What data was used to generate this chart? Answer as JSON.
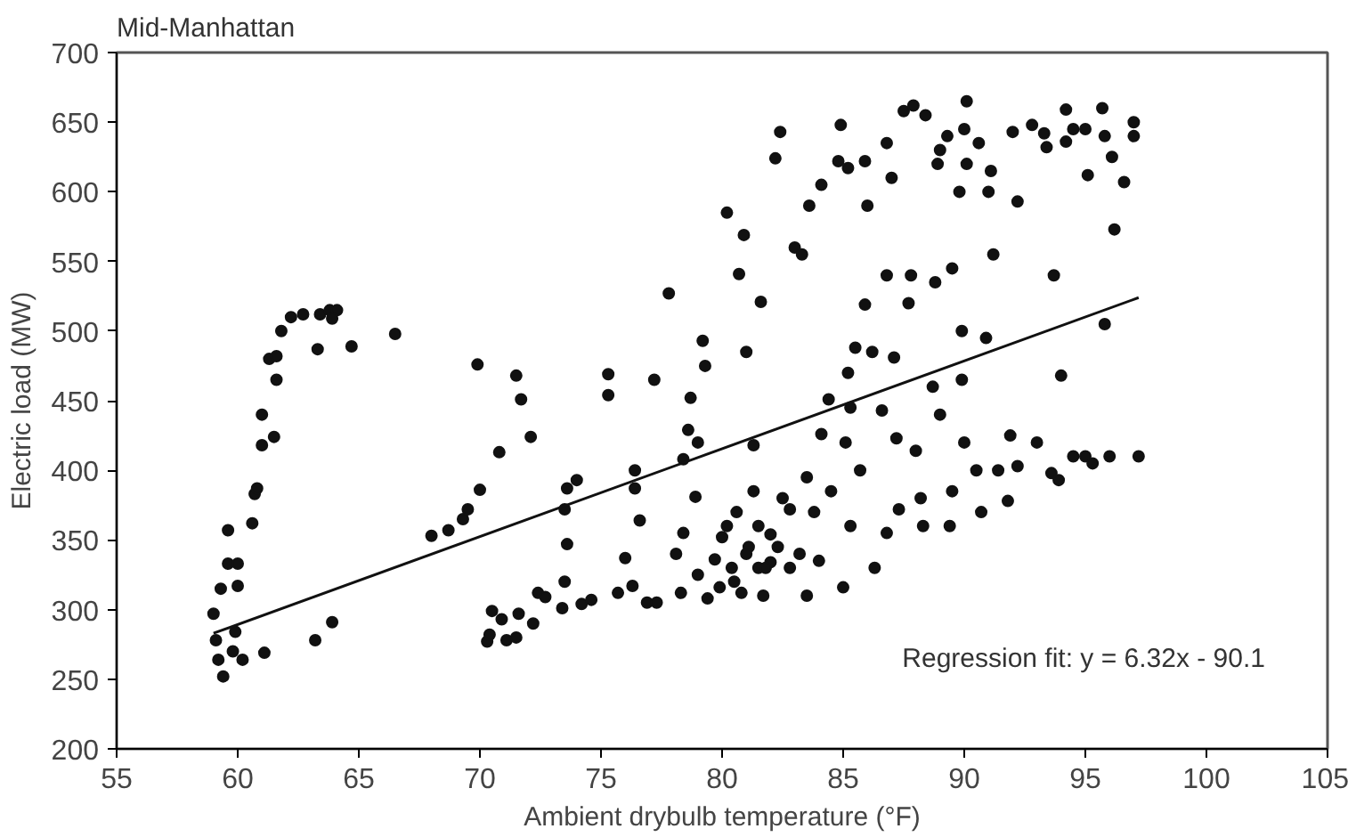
{
  "chart_data": {
    "type": "scatter",
    "title": "Mid-Manhattan",
    "xlabel": "Ambient drybulb temperature (°F)",
    "ylabel": "Electric load (MW)",
    "xlim": [
      55,
      105
    ],
    "xticks": [
      55,
      60,
      65,
      70,
      75,
      80,
      85,
      90,
      95,
      100,
      105
    ],
    "ylim": [
      200,
      700
    ],
    "yticks": [
      200,
      250,
      300,
      350,
      400,
      450,
      500,
      550,
      600,
      650,
      700
    ],
    "grid": false,
    "marker": "circle",
    "annotations": [
      "Regression fit: y = 6.32x - 90.1"
    ],
    "series": [
      {
        "color": "#111111",
        "x": [
          59.0,
          59.1,
          59.2,
          59.4,
          59.3,
          59.6,
          59.6,
          60.0,
          60.0,
          59.9,
          59.8,
          60.2,
          60.6,
          60.7,
          60.8,
          61.0,
          61.0,
          61.1,
          61.3,
          61.5,
          61.6,
          61.6,
          61.8,
          62.2,
          62.7,
          63.3,
          63.4,
          63.8,
          64.1,
          63.9,
          64.7,
          66.5,
          63.2,
          63.9,
          68.0,
          68.7,
          69.3,
          69.5,
          70.0,
          69.9,
          70.8,
          71.5,
          71.7,
          72.1,
          70.3,
          70.4,
          70.5,
          70.9,
          71.1,
          71.5,
          71.6,
          72.2,
          72.4,
          72.7,
          73.4,
          73.5,
          73.6,
          73.5,
          73.6,
          74.0,
          74.2,
          74.6,
          75.3,
          75.3,
          76.0,
          75.7,
          76.3,
          76.4,
          76.6,
          76.4,
          76.9,
          77.3,
          77.2,
          77.8,
          78.1,
          78.4,
          78.3,
          78.7,
          78.6,
          78.4,
          79.0,
          79.2,
          79.3,
          78.9,
          79.0,
          79.4,
          79.7,
          79.9,
          80.0,
          80.2,
          80.7,
          80.9,
          80.6,
          80.4,
          80.8,
          81.0,
          81.6,
          81.3,
          81.3,
          81.1,
          81.5,
          81.7,
          82.0,
          82.2,
          82.4,
          82.0,
          82.5,
          83.0,
          83.3,
          83.6,
          82.8,
          83.2,
          83.5,
          83.5,
          84.1,
          84.1,
          84.4,
          84.0,
          84.5,
          84.8,
          84.9,
          85.2,
          85.1,
          85.2,
          85.0,
          85.3,
          85.5,
          85.3,
          85.7,
          85.9,
          85.9,
          86.0,
          86.2,
          86.3,
          86.6,
          86.8,
          86.8,
          87.0,
          87.1,
          87.2,
          86.8,
          87.3,
          87.5,
          87.8,
          87.7,
          87.9,
          88.0,
          88.4,
          88.3,
          88.2,
          88.7,
          88.8,
          89.0,
          89.0,
          88.9,
          89.3,
          89.5,
          89.4,
          89.5,
          89.8,
          89.9,
          89.9,
          90.0,
          90.1,
          90.1,
          90.0,
          90.5,
          90.6,
          90.7,
          90.9,
          91.0,
          91.2,
          91.1,
          91.4,
          91.8,
          91.9,
          92.0,
          92.2,
          92.2,
          92.8,
          93.0,
          93.3,
          93.4,
          93.6,
          93.7,
          93.9,
          94.0,
          94.2,
          94.2,
          94.5,
          94.5,
          95.0,
          95.1,
          95.0,
          95.3,
          95.7,
          95.8,
          95.8,
          96.0,
          96.1,
          96.2,
          96.6,
          97.0,
          97.0,
          97.2,
          80.5,
          81.0,
          81.8,
          82.3,
          80.2,
          81.5,
          82.8,
          83.8
        ],
        "values": [
          297,
          278,
          264,
          252,
          315,
          333,
          357,
          333,
          317,
          284,
          270,
          264,
          362,
          383,
          387,
          418,
          440,
          269,
          480,
          424,
          465,
          482,
          500,
          510,
          512,
          487,
          512,
          515,
          515,
          509,
          489,
          498,
          278,
          291,
          353,
          357,
          365,
          372,
          386,
          476,
          413,
          468,
          451,
          424,
          277,
          282,
          299,
          293,
          278,
          280,
          297,
          290,
          312,
          309,
          301,
          320,
          347,
          372,
          387,
          393,
          304,
          307,
          469,
          454,
          337,
          312,
          317,
          400,
          364,
          387,
          305,
          305,
          465,
          527,
          340,
          355,
          312,
          452,
          429,
          408,
          420,
          493,
          475,
          381,
          325,
          308,
          336,
          316,
          352,
          585,
          541,
          569,
          370,
          330,
          312,
          485,
          521,
          418,
          385,
          345,
          330,
          310,
          354,
          624,
          643,
          334,
          380,
          560,
          555,
          590,
          372,
          340,
          310,
          395,
          426,
          605,
          451,
          335,
          385,
          622,
          648,
          617,
          420,
          470,
          316,
          360,
          488,
          445,
          400,
          622,
          519,
          590,
          485,
          330,
          443,
          540,
          635,
          610,
          481,
          423,
          355,
          372,
          658,
          540,
          520,
          662,
          414,
          655,
          360,
          380,
          460,
          535,
          440,
          630,
          620,
          640,
          545,
          360,
          385,
          600,
          500,
          465,
          420,
          665,
          620,
          645,
          400,
          635,
          370,
          495,
          600,
          555,
          615,
          400,
          378,
          425,
          643,
          593,
          403,
          648,
          420,
          642,
          632,
          398,
          540,
          393,
          468,
          636,
          659,
          410,
          645,
          410,
          612,
          645,
          405,
          660,
          640,
          505,
          410,
          625,
          573,
          607,
          650,
          640,
          410,
          320,
          340,
          330,
          345,
          360,
          360,
          330,
          370
        ]
      },
      {
        "type": "line",
        "color": "#111111",
        "marker": "none",
        "line_style": "solid",
        "x": [
          59.0,
          97.2
        ],
        "values": [
          283,
          524
        ]
      }
    ]
  }
}
